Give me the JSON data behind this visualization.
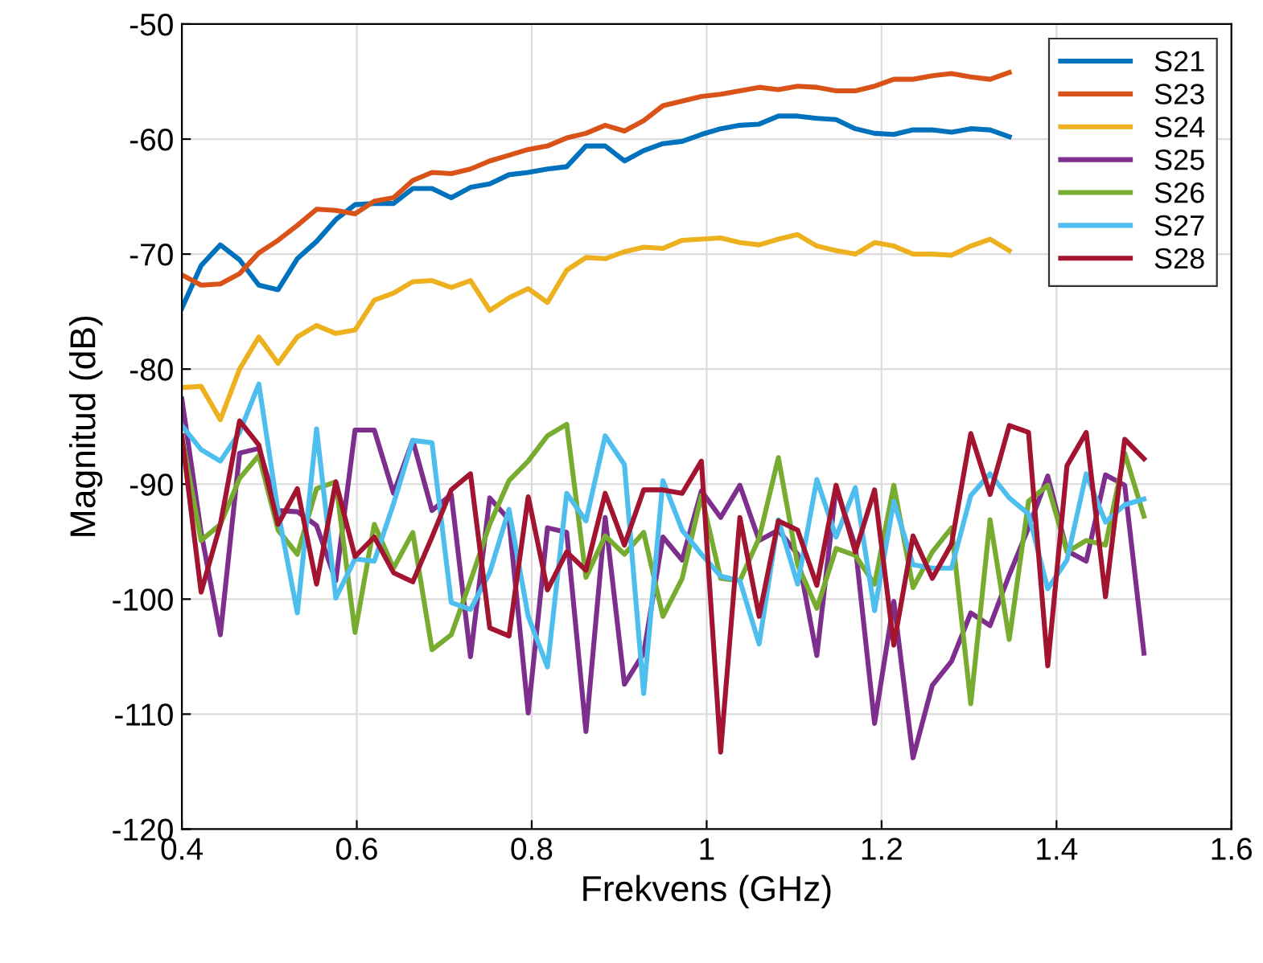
{
  "chart_data": {
    "type": "line",
    "xlabel": "Frekvens (GHz)",
    "ylabel": "Magnitud (dB)",
    "x": [
      0.4,
      0.422,
      0.444,
      0.466,
      0.488,
      0.51,
      0.532,
      0.554,
      0.576,
      0.598,
      0.62,
      0.642,
      0.664,
      0.686,
      0.708,
      0.73,
      0.752,
      0.774,
      0.796,
      0.818,
      0.84,
      0.862,
      0.884,
      0.906,
      0.928,
      0.95,
      0.972,
      0.994,
      1.016,
      1.038,
      1.06,
      1.082,
      1.104,
      1.126,
      1.148,
      1.17,
      1.192,
      1.214,
      1.236,
      1.258,
      1.28,
      1.302,
      1.324,
      1.346,
      1.368,
      1.39,
      1.412,
      1.434,
      1.456,
      1.478,
      1.5
    ],
    "series": [
      {
        "name": "S21",
        "color": "#0072bd",
        "values": [
          -74.7,
          -71.0,
          -69.2,
          -70.5,
          -72.7,
          -73.1,
          -70.4,
          -68.9,
          -67.0,
          -65.7,
          -65.6,
          -65.6,
          -64.3,
          -64.3,
          -65.1,
          -64.2,
          -63.9,
          -63.1,
          -62.9,
          -62.6,
          -62.4,
          -60.6,
          -60.6,
          -61.9,
          -61.0,
          -60.4,
          -60.2,
          -59.6,
          -59.1,
          -58.8,
          -58.7,
          -58.0,
          -58.0,
          -58.2,
          -58.3,
          -59.1,
          -59.5,
          -59.6,
          -59.2,
          -59.2,
          -59.4,
          -59.1,
          -59.2,
          -59.8,
          null,
          null,
          null,
          null,
          null,
          null,
          null
        ]
      },
      {
        "name": "S23",
        "color": "#d95319",
        "values": [
          -71.8,
          -72.7,
          -72.6,
          -71.7,
          -69.9,
          -68.8,
          -67.5,
          -66.1,
          -66.2,
          -66.5,
          -65.4,
          -65.1,
          -63.6,
          -62.9,
          -63.0,
          -62.6,
          -61.9,
          -61.4,
          -60.9,
          -60.6,
          -59.9,
          -59.5,
          -58.8,
          -59.3,
          -58.4,
          -57.1,
          -56.7,
          -56.3,
          -56.1,
          -55.8,
          -55.5,
          -55.7,
          -55.4,
          -55.5,
          -55.8,
          -55.8,
          -55.4,
          -54.8,
          -54.8,
          -54.5,
          -54.3,
          -54.6,
          -54.8,
          -54.2,
          null,
          null,
          null,
          null,
          null,
          null,
          null
        ]
      },
      {
        "name": "S24",
        "color": "#edb120",
        "values": [
          -81.6,
          -81.5,
          -84.4,
          -80.0,
          -77.2,
          -79.5,
          -77.2,
          -76.2,
          -76.9,
          -76.6,
          -74.0,
          -73.4,
          -72.4,
          -72.3,
          -72.9,
          -72.3,
          -74.9,
          -73.8,
          -73.0,
          -74.2,
          -71.4,
          -70.3,
          -70.4,
          -69.8,
          -69.4,
          -69.5,
          -68.8,
          -68.7,
          -68.6,
          -69.0,
          -69.2,
          -68.7,
          -68.3,
          -69.3,
          -69.7,
          -70.0,
          -69.0,
          -69.3,
          -70.0,
          -70.0,
          -70.1,
          -69.3,
          -68.7,
          -69.7,
          null,
          null,
          null,
          null,
          null,
          null,
          null
        ]
      },
      {
        "name": "S25",
        "color": "#7e2f8e",
        "values": [
          -82.6,
          -94.2,
          -103.1,
          -87.3,
          -86.9,
          -92.3,
          -92.4,
          -93.6,
          -98.4,
          -85.3,
          -85.3,
          -90.8,
          -86.2,
          -92.3,
          -90.9,
          -105.0,
          -91.2,
          -93.1,
          -109.9,
          -93.8,
          -94.2,
          -111.5,
          -92.9,
          -107.4,
          -104.7,
          -94.6,
          -96.6,
          -90.6,
          -92.9,
          -90.1,
          -94.9,
          -94.0,
          -96.1,
          -104.9,
          -90.3,
          -95.4,
          -110.8,
          -100.2,
          -113.8,
          -107.5,
          -105.4,
          -101.2,
          -102.3,
          -97.9,
          -93.8,
          -89.3,
          -95.8,
          -96.7,
          -89.2,
          -90.1,
          -104.7
        ]
      },
      {
        "name": "S26",
        "color": "#77ac30",
        "values": [
          -85.9,
          -94.9,
          -93.5,
          -89.5,
          -87.5,
          -94.0,
          -96.1,
          -90.4,
          -89.8,
          -102.9,
          -93.5,
          -97.3,
          -94.2,
          -104.4,
          -103.1,
          -98.4,
          -93.5,
          -89.7,
          -88.0,
          -85.8,
          -84.8,
          -98.1,
          -94.5,
          -96.1,
          -94.2,
          -101.5,
          -98.2,
          -91.0,
          -98.2,
          -98.4,
          -94.7,
          -87.7,
          -97.0,
          -100.8,
          -95.6,
          -96.2,
          -98.7,
          -90.1,
          -99.0,
          -95.9,
          -93.8,
          -109.1,
          -93.1,
          -103.5,
          -91.5,
          -90.1,
          -95.9,
          -94.9,
          -95.3,
          -87.3,
          -92.8
        ]
      },
      {
        "name": "S27",
        "color": "#4dbeee",
        "values": [
          -84.9,
          -87.0,
          -88.0,
          -85.5,
          -81.3,
          -92.4,
          -101.2,
          -85.2,
          -99.9,
          -96.5,
          -96.7,
          -91.7,
          -86.2,
          -86.4,
          -100.3,
          -100.9,
          -97.7,
          -92.2,
          -101.5,
          -105.9,
          -90.8,
          -93.2,
          -85.8,
          -88.3,
          -108.2,
          -89.7,
          -94.0,
          -96.1,
          -98.0,
          -98.4,
          -103.9,
          -93.1,
          -98.7,
          -89.6,
          -94.6,
          -90.3,
          -101.0,
          -91.5,
          -97.0,
          -97.3,
          -97.3,
          -91.0,
          -89.1,
          -91.2,
          -92.6,
          -99.1,
          -96.6,
          -89.1,
          -93.3,
          -91.8,
          -91.3
        ]
      },
      {
        "name": "S28",
        "color": "#a2142f",
        "values": [
          -85.8,
          -99.4,
          -93.5,
          -84.5,
          -86.6,
          -93.5,
          -90.4,
          -98.7,
          -89.8,
          -96.3,
          -94.6,
          -97.7,
          -98.5,
          -94.6,
          -90.5,
          -89.1,
          -102.5,
          -103.2,
          -91.1,
          -99.2,
          -95.9,
          -97.5,
          -90.8,
          -95.3,
          -90.5,
          -90.5,
          -90.8,
          -88.0,
          -113.3,
          -92.9,
          -101.5,
          -93.2,
          -94.0,
          -98.8,
          -90.1,
          -95.9,
          -90.5,
          -104.0,
          -94.5,
          -98.2,
          -95.2,
          -85.6,
          -90.9,
          -84.9,
          -85.5,
          -105.8,
          -88.4,
          -85.5,
          -99.8,
          -86.1,
          -87.8
        ]
      }
    ],
    "xlim": [
      0.4,
      1.6
    ],
    "xticks": [
      0.4,
      0.6,
      0.8,
      1,
      1.2,
      1.4,
      1.6
    ],
    "ylim": [
      -120,
      -50
    ],
    "yticks": [
      -120,
      -110,
      -100,
      -90,
      -80,
      -70,
      -60,
      -50
    ],
    "grid": true,
    "legend": "top right",
    "line_style": "solid",
    "marker": "none"
  }
}
